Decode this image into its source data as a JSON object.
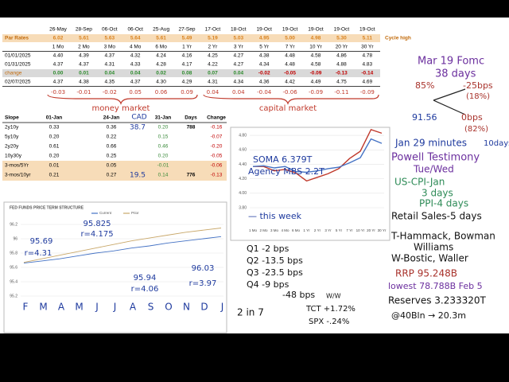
{
  "par_table": {
    "dates": [
      "26-May",
      "28-Sep",
      "06-Oct",
      "06-Oct",
      "25-Aug",
      "27-Sep",
      "17-Oct",
      "18-Oct",
      "19-Oct",
      "19-Oct",
      "19-Oct",
      "19-Oct",
      "19-Oct"
    ],
    "par_label": "Par Rates",
    "par_rates": [
      "6.02",
      "5.61",
      "5.63",
      "5.64",
      "5.61",
      "5.49",
      "5.19",
      "5.03",
      "4.95",
      "5.00",
      "4.98",
      "5.30",
      "5.11"
    ],
    "cycle_label": "Cycle high",
    "tenors": [
      "1 Mo",
      "2 Mo",
      "3 Mo",
      "4 Mo",
      "6 Mo",
      "1 Yr",
      "2 Yr",
      "3 Yr",
      "5 Yr",
      "7 Yr",
      "10 Yr",
      "20 Yr",
      "30 Yr"
    ],
    "rows": [
      {
        "label": "01/01/2025",
        "values": [
          "4.40",
          "4.39",
          "4.37",
          "4.32",
          "4.24",
          "4.16",
          "4.25",
          "4.27",
          "4.38",
          "4.48",
          "4.58",
          "4.86",
          "4.78"
        ]
      },
      {
        "label": "01/31/2025",
        "values": [
          "4.37",
          "4.37",
          "4.31",
          "4.33",
          "4.28",
          "4.17",
          "4.22",
          "4.27",
          "4.34",
          "4.48",
          "4.58",
          "4.88",
          "4.83"
        ]
      },
      {
        "label": "change",
        "values": [
          "0.00",
          "0.01",
          "0.04",
          "0.04",
          "0.02",
          "0.08",
          "0.07",
          "0.04",
          "-0.02",
          "-0.05",
          "-0.09",
          "-0.13",
          "-0.14"
        ]
      },
      {
        "label": "02/07/2025",
        "values": [
          "4.37",
          "4.38",
          "4.35",
          "4.37",
          "4.30",
          "4.29",
          "4.31",
          "4.34",
          "4.36",
          "4.42",
          "4.49",
          "4.75",
          "4.69"
        ]
      }
    ],
    "handwritten_change": [
      "-0.03",
      "-0.01",
      "-0.02",
      "0.05",
      "0.06",
      "0.09",
      "0.04",
      "0.04",
      "-0.04",
      "-0.06",
      "-0.09",
      "-0.11",
      "-0.09"
    ],
    "money_market": "money market",
    "capital_market": "capital market"
  },
  "slope_table": {
    "headers": [
      "Slope",
      "01-Jan",
      "24-Jan",
      "31-Jan",
      "Days",
      "Change"
    ],
    "cad_header": "CAD",
    "rows": [
      [
        "2y10y",
        "0.33",
        "0.36",
        "0.20",
        "788",
        "-0.16"
      ],
      [
        "5y10y",
        "0.20",
        "0.22",
        "0.15",
        null,
        "-0.07"
      ],
      [
        "2y20y",
        "0.61",
        "0.66",
        "0.46",
        null,
        "-0.20"
      ],
      [
        "10y30y",
        "0.20",
        "0.25",
        "0.20",
        null,
        "-0.05"
      ],
      [
        "3-mos/5Yr",
        "0.01",
        "0.05",
        "-0.01",
        null,
        "-0.06"
      ],
      [
        "3-mos/10yr",
        "0.21",
        "0.27",
        "0.14",
        "776",
        "-0.13"
      ]
    ],
    "cad_notes": [
      "38.7",
      "19.5"
    ]
  },
  "chart_data": [
    {
      "type": "line",
      "title": "FED FUNDS PRICE TERM STRUCTURE",
      "categories": [
        null,
        null,
        null,
        null,
        null,
        null,
        null,
        null,
        null,
        null,
        null,
        null
      ],
      "series": [
        {
          "name": "Current",
          "color": "#4472c4",
          "values": [
            95.66,
            95.69,
            95.72,
            95.76,
            95.8,
            95.83,
            95.87,
            95.9,
            95.94,
            95.97,
            96.0,
            96.03
          ]
        },
        {
          "name": "Prior",
          "color": "#c9a86a",
          "values": [
            95.67,
            95.72,
            95.77,
            95.82,
            95.87,
            95.92,
            95.97,
            96.01,
            96.05,
            96.09,
            96.12,
            96.15
          ]
        }
      ],
      "ylim": [
        95.2,
        96.2
      ],
      "yticks": [
        95.2,
        95.4,
        95.6,
        95.8,
        96,
        96.2
      ],
      "grid": true,
      "annotations": [
        "95.69",
        "r=4.31",
        "95.825",
        "r=4.175",
        "95.94",
        "r=4.06",
        "96.03",
        "r=3.97"
      ],
      "months": [
        "F",
        "M",
        "A",
        "M",
        "J",
        "J",
        "A",
        "S",
        "O",
        "N",
        "D",
        "J"
      ]
    },
    {
      "type": "line",
      "categories": [
        "1 Mo",
        "2 Mo",
        "3 Mo",
        "4 Mo",
        "6 Mo",
        "1 Yr",
        "2 Yr",
        "3 Yr",
        "5 Yr",
        "7 Yr",
        "10 Yr",
        "20 Yr",
        "30 Yr"
      ],
      "series": [
        {
          "color": "#c0392b",
          "values": [
            4.37,
            4.37,
            4.31,
            4.33,
            4.28,
            4.17,
            4.22,
            4.27,
            4.34,
            4.48,
            4.58,
            4.88,
            4.83
          ]
        },
        {
          "color": "#4472c4",
          "values": [
            4.37,
            4.38,
            4.35,
            4.37,
            4.3,
            4.29,
            4.31,
            4.34,
            4.36,
            4.42,
            4.49,
            4.75,
            4.69
          ]
        }
      ],
      "ylim": [
        3.8,
        4.9
      ],
      "yticks": [
        {
          "value": 3.8,
          "label": "3.80"
        },
        {
          "value": 4,
          "label": "4.00"
        },
        {
          "value": 4.2,
          "label": "4.20"
        },
        {
          "value": 4.4,
          "label": "4.40"
        },
        {
          "value": 4.6,
          "label": "4.60"
        },
        {
          "value": 4.8,
          "label": "4.80"
        }
      ],
      "grid": true,
      "annotations": [
        "SOMA 6.379T",
        "Agency MBS 2.2T",
        "— this week"
      ]
    }
  ],
  "notes": [
    "Mar 19 Fomc",
    "38 days",
    "85%",
    "-25bps",
    "(18%)",
    "91.56",
    "0bps",
    "(82%)",
    "Jan 29 minutes",
    "10days",
    "Powell Testimony",
    "Tue/Wed",
    "US-CPI-Jan",
    "3 days",
    "PPI-4 days",
    "Retail Sales-5 days",
    "T-Hammack, Bowman",
    "Williams",
    "W-Bostic, Waller",
    "RRP 95.248B",
    "lowest 78.788B Feb 5",
    "Reserves 3.233320T",
    "@40Bln → 20.3m",
    "Q1  -2 bps",
    "Q2  -13.5 bps",
    "Q3  -23.5 bps",
    "Q4  -9 bps",
    "-48 bps",
    "2 in 7",
    "W/W",
    "TCT +1.72%",
    "SPX -.24%"
  ]
}
